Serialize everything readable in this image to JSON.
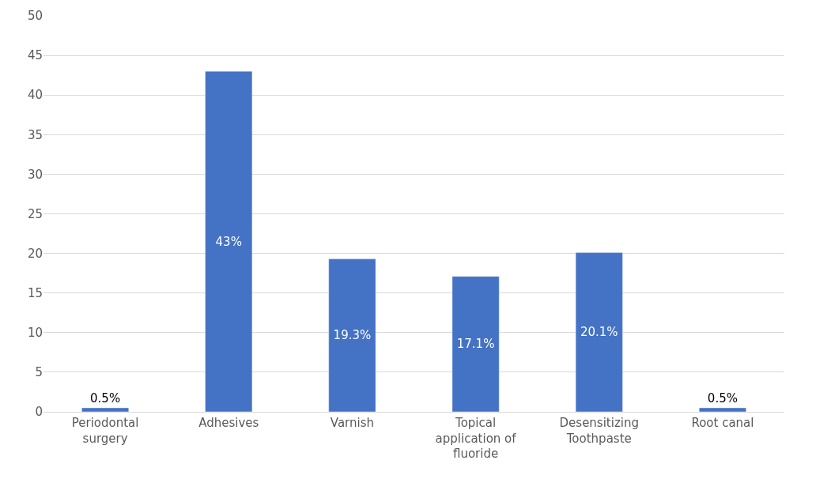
{
  "chart_data": {
    "type": "bar",
    "categories": [
      "Periodontal surgery",
      "Adhesives",
      "Varnish",
      "Topical application of fluoride",
      "Desensitizing Toothpaste",
      "Root canal"
    ],
    "values": [
      0.5,
      43,
      19.3,
      17.1,
      20.1,
      0.5
    ],
    "value_labels": [
      "0.5%",
      "43%",
      "19.3%",
      "17.1%",
      "20.1%",
      "0.5%"
    ],
    "color": "#4472c4",
    "ylim": [
      0,
      50
    ],
    "yticks": [
      0,
      5,
      10,
      15,
      20,
      25,
      30,
      35,
      40,
      45,
      50
    ],
    "grid": "y",
    "legend": false
  }
}
